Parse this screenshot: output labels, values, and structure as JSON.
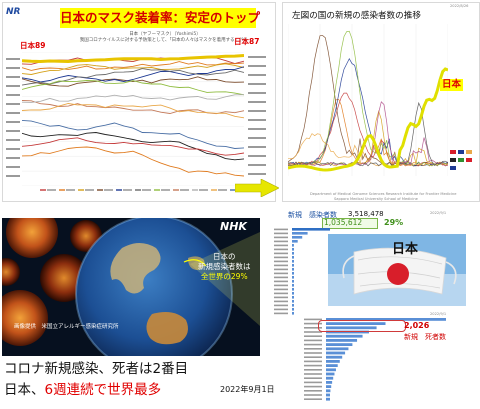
{
  "logo": "NR",
  "mask_chart": {
    "title": "日本のマスク装着率：安定のトップ",
    "subtitle_1": "日本（ヤフーマスク）（Yoshimi5）",
    "subtitle_2": "我国コロナウイルスに対する予防策として、「日本の人々はマスクを着用する」（%）",
    "japan_left": "日本89",
    "japan_right": "日本87",
    "series_colors": [
      "#c43a3a",
      "#e07b1f",
      "#d4a017",
      "#7a4a2a",
      "#1f3a93",
      "#6a6a6a",
      "#8fbc3f",
      "#c47a5a",
      "#b0b0b0",
      "#e9a84a",
      "#4a6fa5",
      "#222222"
    ]
  },
  "case_chart": {
    "title": "左図の国の新規の感染者数の推移",
    "japan_label": "日本",
    "date": "2022/8/26",
    "footer_1": "Department of Medical Genome Sciences Research Institute for Frontier Medicine",
    "footer_2": "Sapporo Medical University School of Medicine"
  },
  "globe": {
    "badge": "NHK",
    "text_1": "日本の",
    "text_2": "新規感染者数は",
    "text_3": "全世界の29%",
    "credit": "画像提供　米国立アレルギー感染症研究所"
  },
  "ranking": {
    "cases_label": "新規　感染者数",
    "cases_total": "3,518,478",
    "japan_cases": "1,035,612",
    "japan_pct": "29%",
    "japan_title": "日本",
    "deaths_value": "2,026",
    "deaths_label": "新規　死者数",
    "date": "2022/9/1"
  },
  "caption": {
    "line1": "コロナ新規感染、死者は2番目",
    "line2_a": "日本、",
    "line2_b": "6週連続で世界最多",
    "date": "2022年9月1日"
  }
}
